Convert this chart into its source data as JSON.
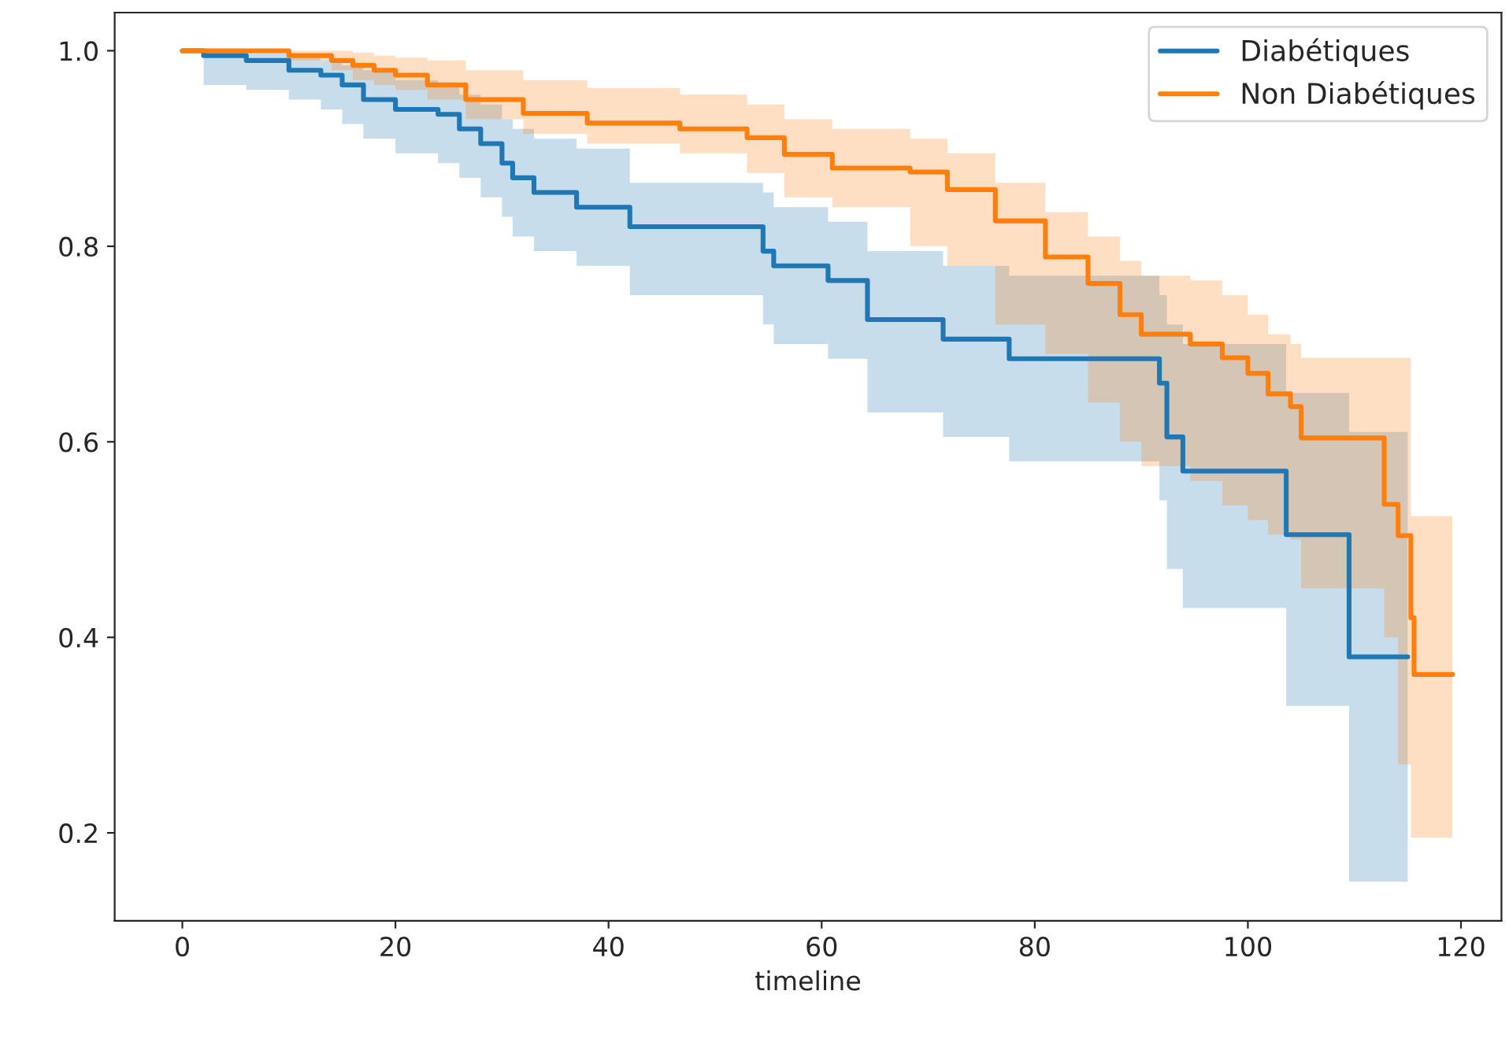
{
  "chart_data": {
    "type": "step",
    "xlabel": "timeline",
    "xlim": [
      -6.35,
      123.8
    ],
    "xticks": [
      0,
      20,
      40,
      60,
      80,
      100,
      120
    ],
    "ylim": [
      0.11,
      1.039
    ],
    "yticks": [
      0.2,
      0.4,
      0.6,
      0.8,
      {
        "value": 1,
        "label": "1.0"
      }
    ],
    "legend": "top right",
    "grid": false,
    "series": [
      {
        "name": "Diabétiques",
        "color": "#1f77b4",
        "x": [
          0,
          2,
          6,
          10,
          13,
          15,
          17,
          20,
          24,
          26,
          28,
          30,
          31,
          33,
          37,
          42,
          54.5,
          55.5,
          60.6,
          64.3,
          71.4,
          77.6,
          91.7,
          92.4,
          93.9,
          103.6,
          109.5,
          115
        ],
        "values": [
          1.0,
          0.995,
          0.99,
          0.98,
          0.975,
          0.965,
          0.95,
          0.94,
          0.935,
          0.92,
          0.905,
          0.885,
          0.87,
          0.855,
          0.84,
          0.82,
          0.795,
          0.78,
          0.765,
          0.725,
          0.705,
          0.685,
          0.66,
          0.605,
          0.57,
          0.505,
          0.38,
          0.38
        ],
        "lower": [
          1.0,
          0.965,
          0.96,
          0.95,
          0.94,
          0.925,
          0.91,
          0.895,
          0.885,
          0.87,
          0.85,
          0.83,
          0.81,
          0.795,
          0.78,
          0.75,
          0.72,
          0.7,
          0.685,
          0.63,
          0.605,
          0.58,
          0.54,
          0.47,
          0.43,
          0.33,
          0.15,
          0.15
        ],
        "upper": [
          1.0,
          1.0,
          0.998,
          0.995,
          0.99,
          0.985,
          0.98,
          0.97,
          0.965,
          0.955,
          0.945,
          0.93,
          0.92,
          0.91,
          0.9,
          0.865,
          0.855,
          0.84,
          0.825,
          0.795,
          0.78,
          0.77,
          0.75,
          0.72,
          0.7,
          0.65,
          0.61,
          0.61
        ]
      },
      {
        "name": "Non Diabétiques",
        "color": "#ff7f0e",
        "x": [
          0,
          10,
          14,
          16,
          18,
          20,
          23,
          26.6,
          32,
          38,
          46.7,
          53,
          56.5,
          61,
          68.3,
          71.8,
          76.3,
          81,
          85,
          88,
          90,
          94.6,
          97.6,
          100,
          101.9,
          104,
          105,
          112.8,
          114.1,
          115.3,
          115.6,
          119.2
        ],
        "values": [
          1.0,
          0.995,
          0.99,
          0.985,
          0.98,
          0.975,
          0.965,
          0.95,
          0.936,
          0.926,
          0.92,
          0.911,
          0.894,
          0.88,
          0.876,
          0.858,
          0.826,
          0.789,
          0.762,
          0.73,
          0.71,
          0.7,
          0.686,
          0.67,
          0.649,
          0.636,
          0.604,
          0.536,
          0.504,
          0.42,
          0.362,
          0.362
        ],
        "upper": [
          1.0,
          1.0,
          1.0,
          0.998,
          0.995,
          0.993,
          0.99,
          0.98,
          0.97,
          0.962,
          0.955,
          0.945,
          0.93,
          0.92,
          0.91,
          0.895,
          0.865,
          0.835,
          0.81,
          0.785,
          0.77,
          0.765,
          0.75,
          0.73,
          0.71,
          0.7,
          0.686,
          0.686,
          0.686,
          0.524,
          0.524,
          0.524
        ],
        "lower": [
          1.0,
          0.99,
          0.98,
          0.97,
          0.965,
          0.96,
          0.95,
          0.93,
          0.915,
          0.905,
          0.895,
          0.875,
          0.85,
          0.84,
          0.8,
          0.78,
          0.72,
          0.69,
          0.64,
          0.6,
          0.575,
          0.56,
          0.535,
          0.52,
          0.505,
          0.5,
          0.45,
          0.4,
          0.27,
          0.195,
          0.195,
          0.195
        ]
      }
    ]
  }
}
